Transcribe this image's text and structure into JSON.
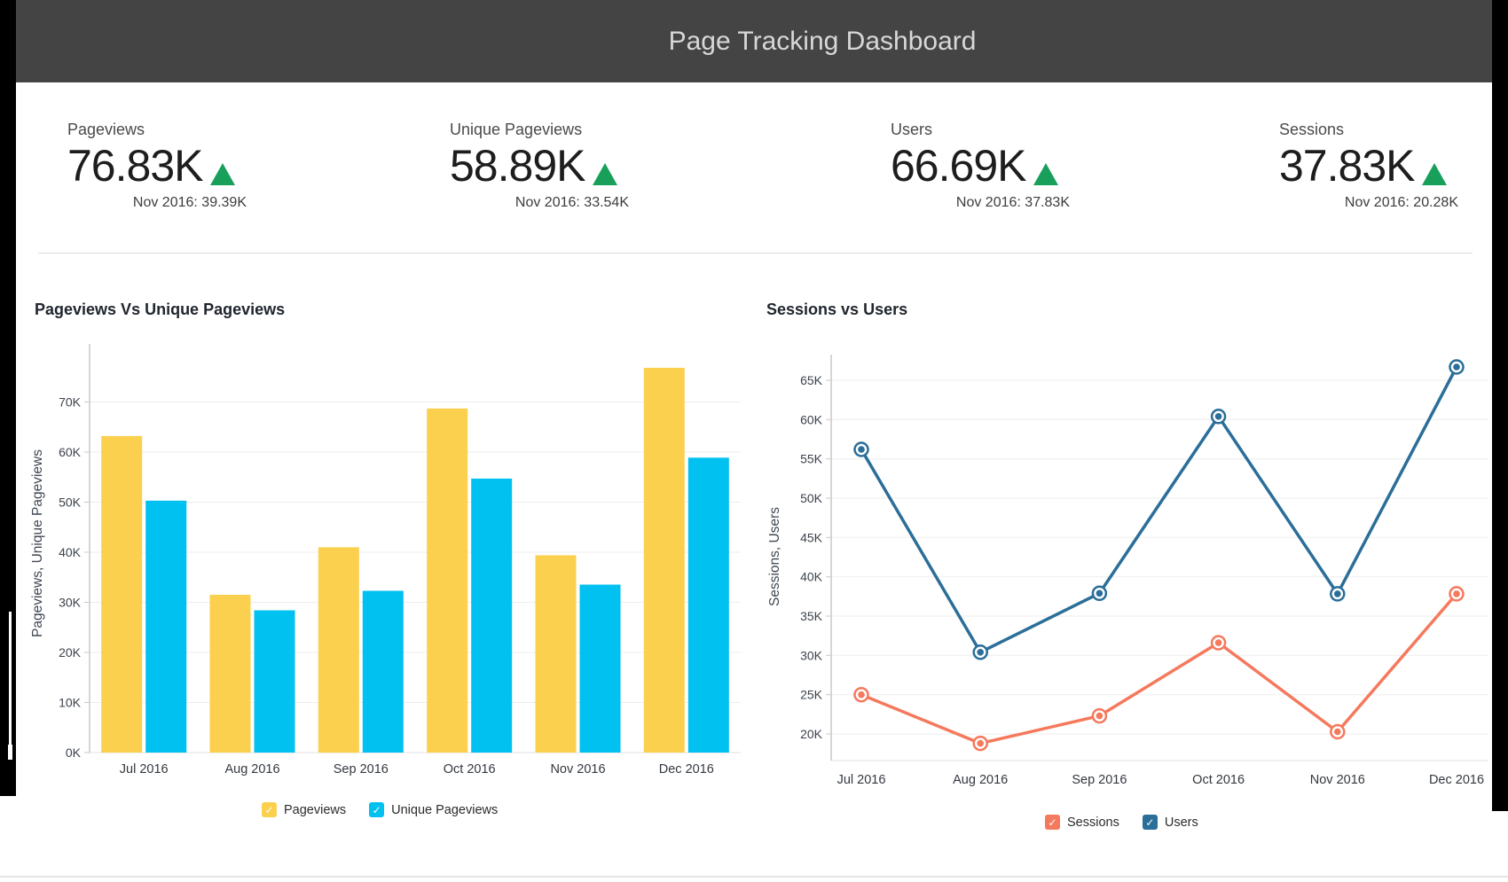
{
  "header": {
    "title": "Page Tracking Dashboard"
  },
  "kpis": [
    {
      "label": "Pageviews",
      "value": "76.83K",
      "trend_icon": "up-triangle",
      "comparison": "Nov 2016: 39.39K"
    },
    {
      "label": "Unique Pageviews",
      "value": "58.89K",
      "trend_icon": "up-triangle",
      "comparison": "Nov 2016: 33.54K"
    },
    {
      "label": "Users",
      "value": "66.69K",
      "trend_icon": "up-triangle",
      "comparison": "Nov 2016: 37.83K"
    },
    {
      "label": "Sessions",
      "value": "37.83K",
      "trend_icon": "up-triangle",
      "comparison": "Nov 2016: 20.28K"
    }
  ],
  "colors": {
    "header_bg": "#444444",
    "trend_green": "#18A05B",
    "bar_yellow": "#FBD04E",
    "bar_cyan": "#01C1F1",
    "line_sessions": "#F5795D",
    "line_users": "#2A6E99",
    "gridline": "#ededed",
    "axis": "#c9c9c9"
  },
  "chart_data": [
    {
      "type": "bar",
      "title": "Pageviews Vs Unique Pageviews",
      "xlabel": "",
      "ylabel": "Pageviews, Unique Pageviews",
      "categories": [
        "Jul 2016",
        "Aug 2016",
        "Sep 2016",
        "Oct 2016",
        "Nov 2016",
        "Dec 2016"
      ],
      "series": [
        {
          "name": "Pageviews",
          "color": "#FBD04E",
          "values": [
            63.2,
            31.5,
            41.0,
            68.7,
            39.39,
            76.83
          ]
        },
        {
          "name": "Unique Pageviews",
          "color": "#01C1F1",
          "values": [
            50.3,
            28.4,
            32.3,
            54.7,
            33.54,
            58.89
          ]
        }
      ],
      "unit": "K (thousands)",
      "ylim": [
        0,
        81.6
      ],
      "yticks": [
        0,
        10,
        20,
        30,
        40,
        50,
        60,
        70
      ],
      "ytick_suffix": "K",
      "grid": true,
      "legend_position": "bottom"
    },
    {
      "type": "line",
      "title": "Sessions vs Users",
      "xlabel": "",
      "ylabel": "Sessions, Users",
      "categories": [
        "Jul 2016",
        "Aug 2016",
        "Sep 2016",
        "Oct 2016",
        "Nov 2016",
        "Dec 2016"
      ],
      "series": [
        {
          "name": "Sessions",
          "color": "#F5795D",
          "values": [
            25.0,
            18.8,
            22.3,
            31.6,
            20.28,
            37.83
          ]
        },
        {
          "name": "Users",
          "color": "#2A6E99",
          "values": [
            56.2,
            30.4,
            37.9,
            60.4,
            37.83,
            66.69
          ]
        }
      ],
      "unit": "K (thousands)",
      "ylim": [
        16.6,
        68.3
      ],
      "yticks": [
        20,
        25,
        30,
        35,
        40,
        45,
        50,
        55,
        60,
        65
      ],
      "ytick_suffix": "K",
      "grid": true,
      "marker": "ring-dot",
      "legend_position": "bottom"
    }
  ]
}
